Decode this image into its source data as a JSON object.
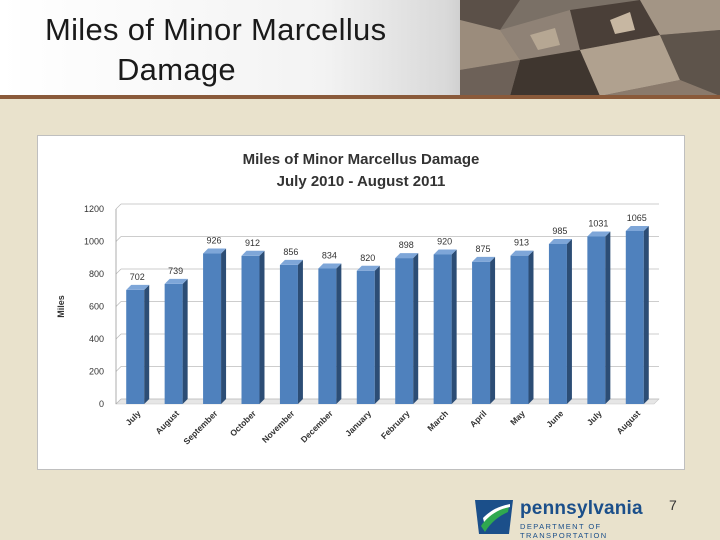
{
  "slide": {
    "title_line1": "Miles of Minor Marcellus",
    "title_line2": "Damage",
    "page_number": "7"
  },
  "logo": {
    "wordmark": "pennsylvania",
    "subtitle": "DEPARTMENT OF TRANSPORTATION"
  },
  "colors": {
    "bar_front": "#4f81bd",
    "bar_side": "#2c4d75",
    "bar_top": "#7ea6d8",
    "header_rule": "#8a5a3a"
  },
  "chart_data": {
    "type": "bar",
    "title": "Miles of Minor Marcellus Damage",
    "subtitle": "July 2010 - August 2011",
    "xlabel": "",
    "ylabel": "Miles",
    "ylim": [
      0,
      1200
    ],
    "yticks": [
      0,
      200,
      400,
      600,
      800,
      1000,
      1200
    ],
    "grid": true,
    "categories": [
      "July",
      "August",
      "September",
      "October",
      "November",
      "December",
      "January",
      "February",
      "March",
      "April",
      "May",
      "June",
      "July",
      "August"
    ],
    "values": [
      702,
      739,
      926,
      912,
      856,
      834,
      820,
      898,
      920,
      875,
      913,
      985,
      1031,
      1065
    ]
  }
}
